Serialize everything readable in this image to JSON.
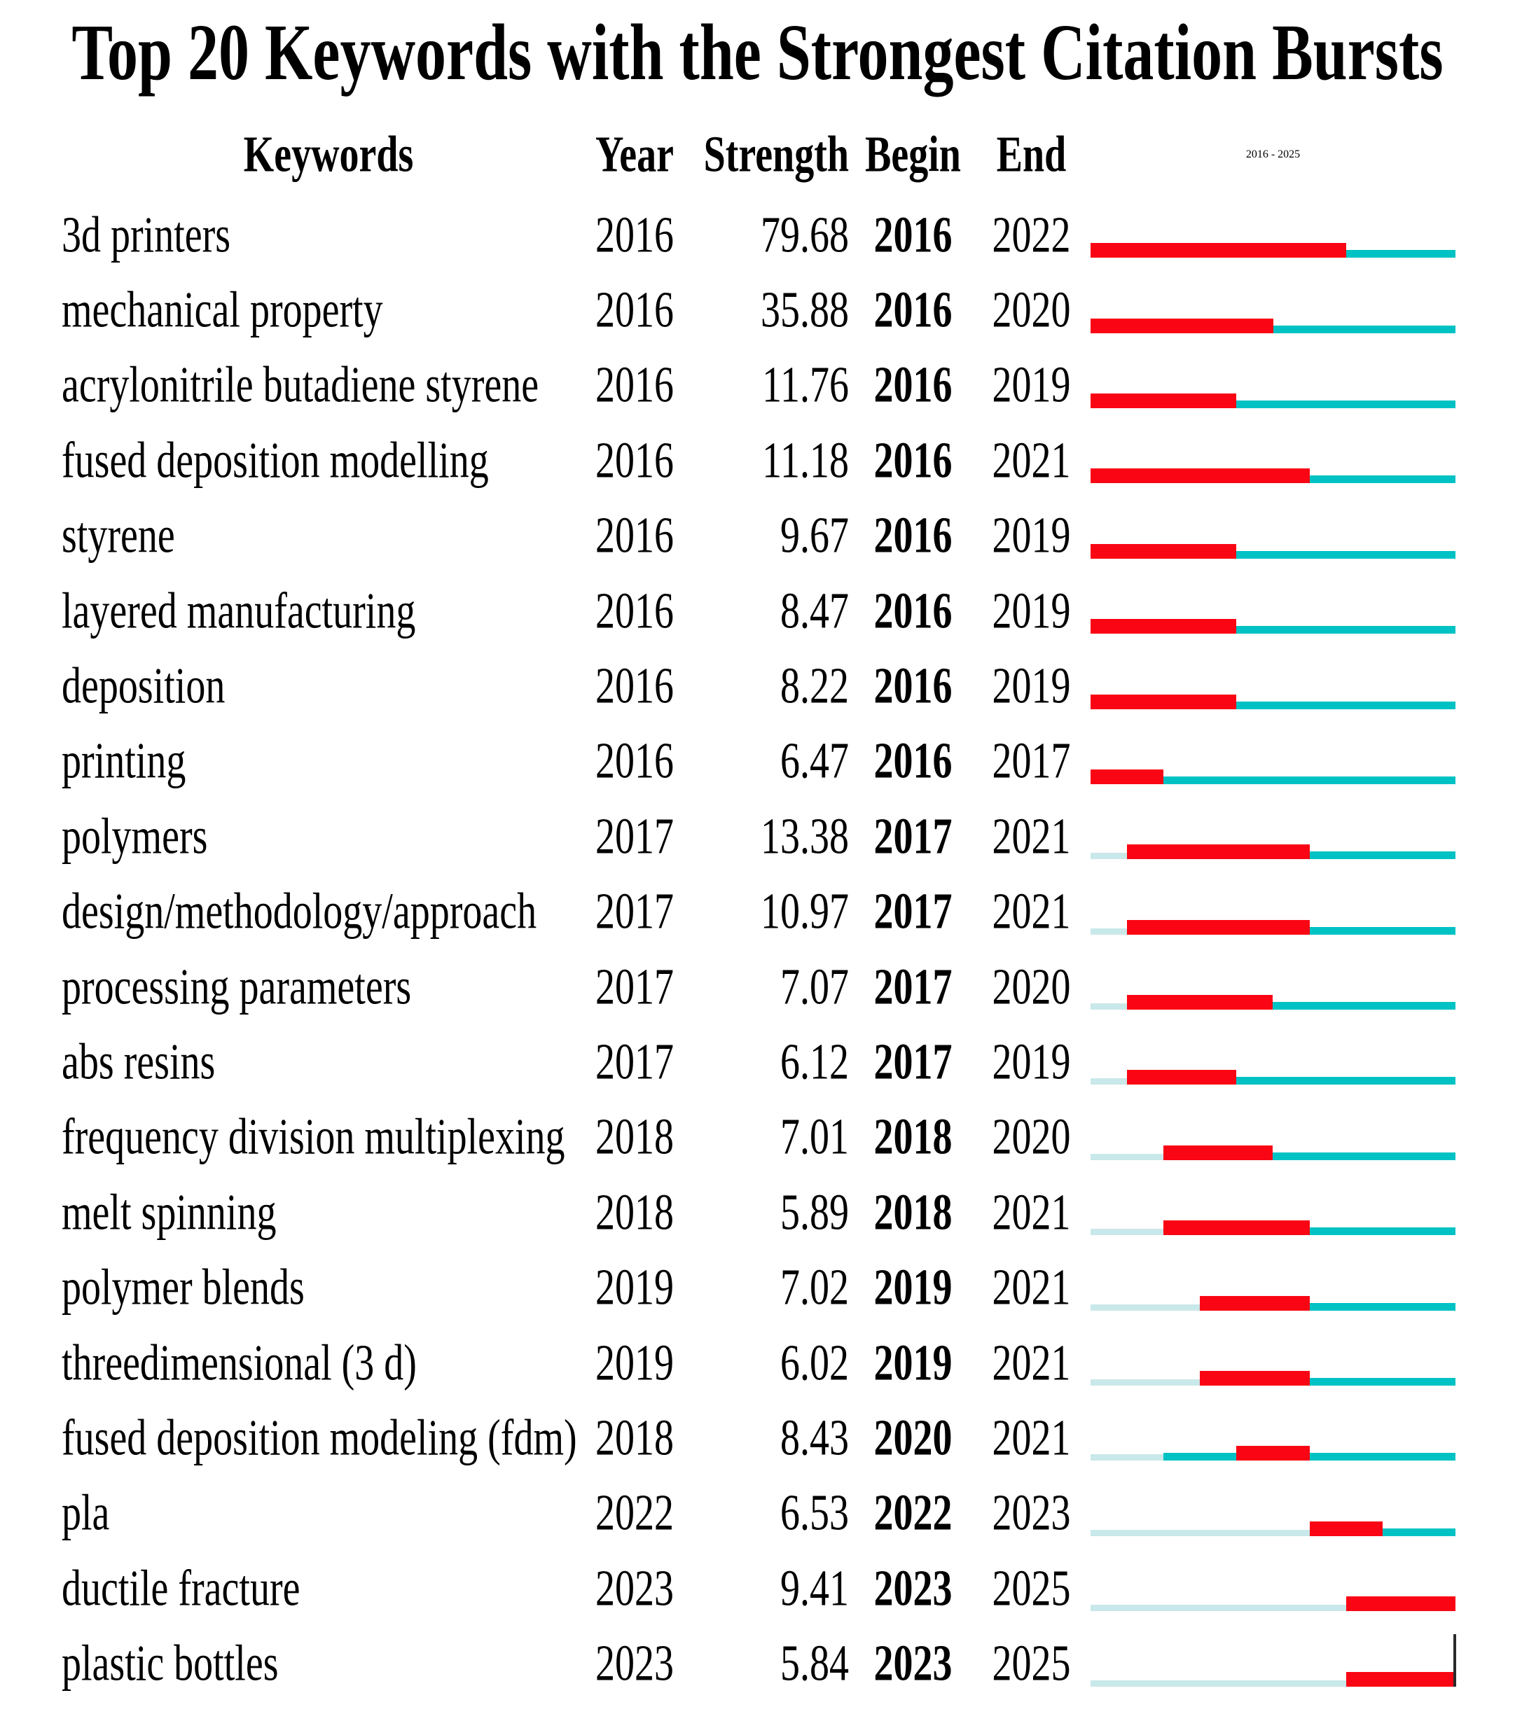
{
  "title": "Top 20 Keywords with the Strongest Citation Bursts",
  "header": {
    "keywords": "Keywords",
    "year": "Year",
    "strength": "Strength",
    "begin": "Begin",
    "end": "End",
    "timeline": "2016 - 2025"
  },
  "colors": {
    "burst_red": "#FA0514",
    "active_cyan": "#00C2C4",
    "pre_appearance_pale": "#C9E8E9",
    "cursor_line": "#2a2a2a",
    "text": "#000000"
  },
  "end_marker_line": {
    "present_on_last_row": true
  },
  "chart_data": {
    "type": "table",
    "title": "Top 20 Keywords with the Strongest Citation Bursts",
    "columns": [
      "Keywords",
      "Year",
      "Strength",
      "Begin",
      "End",
      "2016 - 2025"
    ],
    "timeline": {
      "min_year": 2016,
      "max_year": 2025,
      "bar_encoding": {
        "red": "burst period from Begin through End (inclusive)",
        "cyan": "years keyword present outside burst period",
        "pale": "years before keyword first appearance (Year)"
      }
    },
    "rows": [
      {
        "keyword": "3d printers",
        "year": 2016,
        "strength": "79.68",
        "begin": 2016,
        "end": 2022
      },
      {
        "keyword": "mechanical property",
        "year": 2016,
        "strength": "35.88",
        "begin": 2016,
        "end": 2020
      },
      {
        "keyword": "acrylonitrile butadiene styrene",
        "year": 2016,
        "strength": "11.76",
        "begin": 2016,
        "end": 2019
      },
      {
        "keyword": "fused deposition modelling",
        "year": 2016,
        "strength": "11.18",
        "begin": 2016,
        "end": 2021
      },
      {
        "keyword": "styrene",
        "year": 2016,
        "strength": "9.67",
        "begin": 2016,
        "end": 2019
      },
      {
        "keyword": "layered manufacturing",
        "year": 2016,
        "strength": "8.47",
        "begin": 2016,
        "end": 2019
      },
      {
        "keyword": "deposition",
        "year": 2016,
        "strength": "8.22",
        "begin": 2016,
        "end": 2019
      },
      {
        "keyword": "printing",
        "year": 2016,
        "strength": "6.47",
        "begin": 2016,
        "end": 2017
      },
      {
        "keyword": "polymers",
        "year": 2017,
        "strength": "13.38",
        "begin": 2017,
        "end": 2021
      },
      {
        "keyword": "design/methodology/approach",
        "year": 2017,
        "strength": "10.97",
        "begin": 2017,
        "end": 2021
      },
      {
        "keyword": "processing parameters",
        "year": 2017,
        "strength": "7.07",
        "begin": 2017,
        "end": 2020
      },
      {
        "keyword": "abs resins",
        "year": 2017,
        "strength": "6.12",
        "begin": 2017,
        "end": 2019
      },
      {
        "keyword": "frequency division multiplexing",
        "year": 2018,
        "strength": "7.01",
        "begin": 2018,
        "end": 2020
      },
      {
        "keyword": "melt spinning",
        "year": 2018,
        "strength": "5.89",
        "begin": 2018,
        "end": 2021
      },
      {
        "keyword": "polymer blends",
        "year": 2019,
        "strength": "7.02",
        "begin": 2019,
        "end": 2021
      },
      {
        "keyword": "threedimensional (3 d)",
        "year": 2019,
        "strength": "6.02",
        "begin": 2019,
        "end": 2021
      },
      {
        "keyword": "fused deposition modeling (fdm)",
        "year": 2018,
        "strength": "8.43",
        "begin": 2020,
        "end": 2021
      },
      {
        "keyword": "pla",
        "year": 2022,
        "strength": "6.53",
        "begin": 2022,
        "end": 2023
      },
      {
        "keyword": "ductile fracture",
        "year": 2023,
        "strength": "9.41",
        "begin": 2023,
        "end": 2025
      },
      {
        "keyword": "plastic bottles",
        "year": 2023,
        "strength": "5.84",
        "begin": 2023,
        "end": 2025
      }
    ]
  }
}
